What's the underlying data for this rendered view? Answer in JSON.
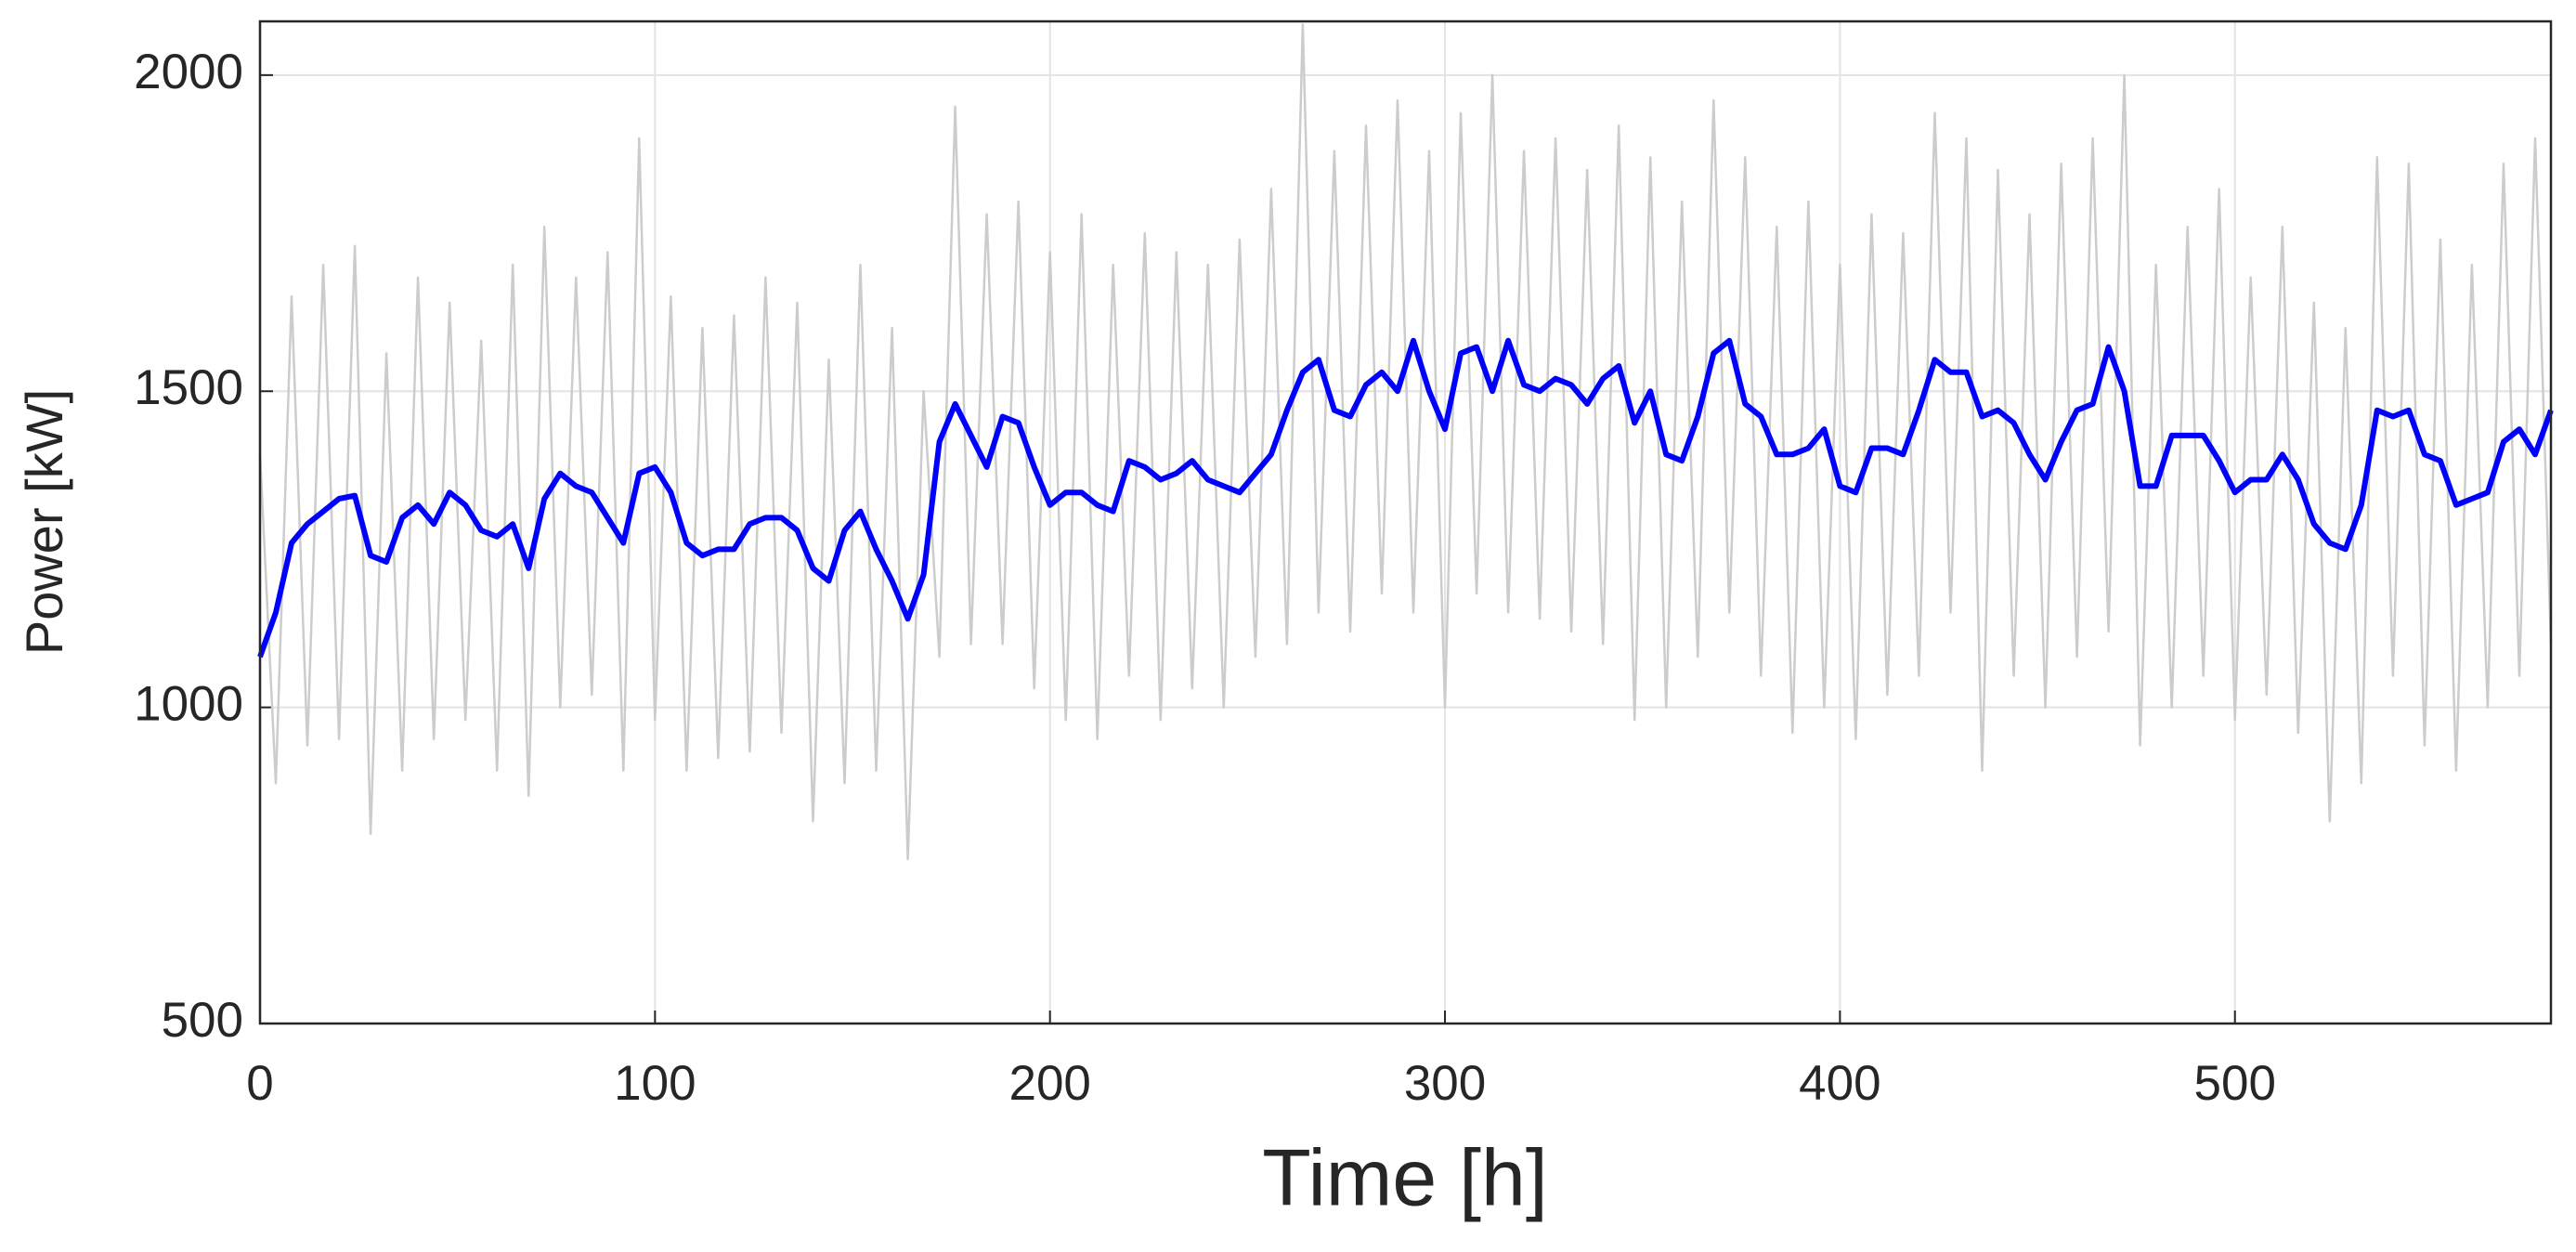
{
  "chart_data": {
    "type": "line",
    "x_label": "Time [h]",
    "y_label": "Power [kW]",
    "xlim": [
      0,
      580
    ],
    "ylim": [
      500,
      2085
    ],
    "xticks": [
      0,
      100,
      200,
      300,
      400,
      500
    ],
    "yticks": [
      500,
      1000,
      1500,
      2000
    ],
    "grid": true,
    "x": [
      0,
      4,
      8,
      12,
      16,
      20,
      24,
      28,
      32,
      36,
      40,
      44,
      48,
      52,
      56,
      60,
      64,
      68,
      72,
      76,
      80,
      84,
      88,
      92,
      96,
      100,
      104,
      108,
      112,
      116,
      120,
      124,
      128,
      132,
      136,
      140,
      144,
      148,
      152,
      156,
      160,
      164,
      168,
      172,
      176,
      180,
      184,
      188,
      192,
      196,
      200,
      204,
      208,
      212,
      216,
      220,
      224,
      228,
      232,
      236,
      240,
      244,
      248,
      252,
      256,
      260,
      264,
      268,
      272,
      276,
      280,
      284,
      288,
      292,
      296,
      300,
      304,
      308,
      312,
      316,
      320,
      324,
      328,
      332,
      336,
      340,
      344,
      348,
      352,
      356,
      360,
      364,
      368,
      372,
      376,
      380,
      384,
      388,
      392,
      396,
      400,
      404,
      408,
      412,
      416,
      420,
      424,
      428,
      432,
      436,
      440,
      444,
      448,
      452,
      456,
      460,
      464,
      468,
      472,
      476,
      480,
      484,
      488,
      492,
      496,
      500,
      504,
      508,
      512,
      516,
      520,
      524,
      528,
      532,
      536,
      540,
      544,
      548,
      552,
      556,
      560,
      564,
      568,
      572,
      576,
      580
    ],
    "series": [
      {
        "color": "#cccccc",
        "values": [
          1400,
          880,
          1650,
          940,
          1700,
          950,
          1730,
          800,
          1560,
          900,
          1680,
          950,
          1640,
          980,
          1580,
          900,
          1700,
          860,
          1760,
          1000,
          1680,
          1020,
          1720,
          900,
          1900,
          980,
          1650,
          900,
          1600,
          920,
          1620,
          930,
          1680,
          960,
          1640,
          820,
          1550,
          880,
          1700,
          900,
          1600,
          760,
          1500,
          1080,
          1950,
          1100,
          1780,
          1100,
          1800,
          1030,
          1720,
          980,
          1780,
          950,
          1700,
          1050,
          1750,
          980,
          1720,
          1030,
          1700,
          1000,
          1740,
          1080,
          1820,
          1100,
          2080,
          1150,
          1880,
          1120,
          1920,
          1180,
          1960,
          1150,
          1880,
          1000,
          1940,
          1180,
          2000,
          1150,
          1880,
          1140,
          1900,
          1120,
          1850,
          1100,
          1920,
          980,
          1870,
          1000,
          1800,
          1080,
          1960,
          1150,
          1870,
          1050,
          1760,
          960,
          1800,
          1000,
          1700,
          950,
          1780,
          1020,
          1750,
          1050,
          1940,
          1150,
          1900,
          900,
          1850,
          1050,
          1780,
          1000,
          1860,
          1080,
          1900,
          1120,
          2000,
          940,
          1700,
          1000,
          1760,
          1050,
          1820,
          980,
          1680,
          1020,
          1760,
          960,
          1640,
          820,
          1600,
          880,
          1870,
          1050,
          1860,
          940,
          1740,
          900,
          1700,
          1000,
          1860,
          1050,
          1900,
          1100
        ]
      },
      {
        "color": "#0000ff",
        "values": [
          1080,
          1150,
          1260,
          1290,
          1310,
          1330,
          1335,
          1240,
          1230,
          1300,
          1320,
          1290,
          1340,
          1320,
          1280,
          1270,
          1290,
          1220,
          1330,
          1370,
          1350,
          1340,
          1300,
          1260,
          1370,
          1380,
          1340,
          1260,
          1240,
          1250,
          1250,
          1290,
          1300,
          1300,
          1280,
          1220,
          1200,
          1280,
          1310,
          1250,
          1200,
          1140,
          1210,
          1420,
          1480,
          1430,
          1380,
          1460,
          1450,
          1380,
          1320,
          1340,
          1340,
          1320,
          1310,
          1390,
          1380,
          1360,
          1370,
          1390,
          1360,
          1350,
          1340,
          1370,
          1400,
          1470,
          1530,
          1550,
          1470,
          1460,
          1510,
          1530,
          1500,
          1580,
          1500,
          1440,
          1560,
          1570,
          1500,
          1580,
          1510,
          1500,
          1520,
          1510,
          1480,
          1520,
          1540,
          1450,
          1500,
          1400,
          1390,
          1460,
          1560,
          1580,
          1480,
          1460,
          1400,
          1400,
          1410,
          1440,
          1350,
          1340,
          1410,
          1410,
          1400,
          1470,
          1550,
          1530,
          1530,
          1460,
          1470,
          1450,
          1400,
          1360,
          1420,
          1470,
          1480,
          1570,
          1500,
          1350,
          1350,
          1430,
          1430,
          1430,
          1390,
          1340,
          1360,
          1360,
          1400,
          1360,
          1290,
          1260,
          1250,
          1320,
          1470,
          1460,
          1470,
          1400,
          1390,
          1320,
          1330,
          1340,
          1420,
          1440,
          1400,
          1470
        ]
      }
    ]
  }
}
